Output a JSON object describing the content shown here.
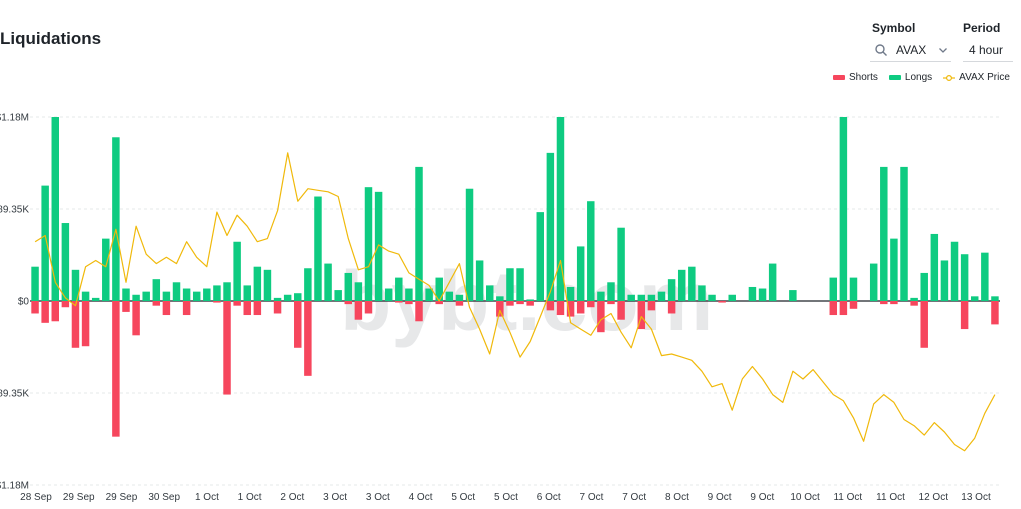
{
  "chart_title": "Liquidations",
  "controls": {
    "symbol_label": "Symbol",
    "symbol_value": "AVAX",
    "period_label": "Period",
    "period_value": "4 hour"
  },
  "icons": {
    "search": "search-icon",
    "dropdown": "chevron-down-icon"
  },
  "watermark": "bybt.com",
  "colors": {
    "shorts": "#f6465d",
    "longs": "#0ecb81",
    "price": "#f0b90b"
  },
  "chart_data": {
    "type": "bar",
    "title": "Liquidations",
    "legend": [
      "Shorts",
      "Longs",
      "AVAX Price"
    ],
    "legend_position": "top-right",
    "grid": true,
    "ylim": [
      -1.18,
      1.18
    ],
    "y_unit": "M USD",
    "y_tick_labels": [
      "$1.18M",
      "$589.35K",
      "$0",
      "$589.35K",
      "$1.18M"
    ],
    "x_tick_labels": [
      "28 Sep",
      "29 Sep",
      "29 Sep",
      "30 Sep",
      "1 Oct",
      "1 Oct",
      "2 Oct",
      "3 Oct",
      "3 Oct",
      "4 Oct",
      "5 Oct",
      "5 Oct",
      "6 Oct",
      "7 Oct",
      "7 Oct",
      "8 Oct",
      "9 Oct",
      "9 Oct",
      "10 Oct",
      "11 Oct",
      "11 Oct",
      "12 Oct",
      "13 Oct"
    ],
    "series": [
      {
        "name": "Longs",
        "values": [
          0.22,
          0.74,
          1.18,
          0.5,
          0.2,
          0.06,
          0.02,
          0.4,
          1.05,
          0.08,
          0.04,
          0.06,
          0.14,
          0.06,
          0.12,
          0.08,
          0.06,
          0.08,
          0.1,
          0.12,
          0.38,
          0.1,
          0.22,
          0.2,
          0.02,
          0.04,
          0.05,
          0.21,
          0.67,
          0.24,
          0.07,
          0.18,
          0.12,
          0.73,
          0.7,
          0.08,
          0.15,
          0.08,
          0.86,
          0.08,
          0.15,
          0.06,
          0.04,
          0.72,
          0.26,
          0.1,
          0.03,
          0.21,
          0.21,
          0.01,
          0.57,
          0.95,
          1.18,
          0.09,
          0.35,
          0.64,
          0.06,
          0.12,
          0.47,
          0.04,
          0.04,
          0.04,
          0.06,
          0.14,
          0.2,
          0.22,
          0.1,
          0.04,
          0.0,
          0.04,
          0.0,
          0.09,
          0.08,
          0.24,
          0.0,
          0.07,
          0.0,
          0.0,
          0.0,
          0.15,
          1.18,
          0.15,
          0.0,
          0.24,
          0.86,
          0.4,
          0.86,
          0.02,
          0.18,
          0.43,
          0.26,
          0.38,
          0.3,
          0.03,
          0.31,
          0.03
        ]
      },
      {
        "name": "Shorts",
        "values": [
          -0.08,
          -0.14,
          -0.13,
          -0.04,
          -0.3,
          -0.29,
          -0.0,
          -0.0,
          -0.87,
          -0.07,
          -0.22,
          -0.0,
          -0.03,
          -0.09,
          -0.0,
          -0.09,
          -0.0,
          -0.0,
          -0.01,
          -0.6,
          -0.03,
          -0.09,
          -0.09,
          -0.0,
          -0.08,
          -0.0,
          -0.3,
          -0.48,
          -0.0,
          -0.0,
          -0.0,
          -0.02,
          -0.12,
          -0.08,
          -0.0,
          -0.0,
          -0.01,
          -0.02,
          -0.13,
          -0.0,
          -0.02,
          -0.0,
          -0.03,
          -0.0,
          -0.0,
          -0.0,
          -0.1,
          -0.03,
          -0.02,
          -0.03,
          -0.0,
          -0.06,
          -0.09,
          -0.1,
          -0.08,
          -0.04,
          -0.2,
          -0.02,
          -0.12,
          -0.0,
          -0.18,
          -0.06,
          -0.0,
          -0.08,
          -0.0,
          -0.0,
          -0.0,
          -0.0,
          -0.01,
          -0.0,
          -0.0,
          -0.0,
          -0.0,
          -0.0,
          -0.0,
          -0.0,
          -0.0,
          -0.0,
          -0.0,
          -0.09,
          -0.09,
          -0.05,
          -0.0,
          -0.0,
          -0.02,
          -0.02,
          -0.0,
          -0.03,
          -0.3,
          -0.0,
          -0.0,
          -0.0,
          -0.18,
          -0.0,
          -0.0,
          -0.15
        ]
      },
      {
        "name": "AVAX Price",
        "values": [
          0.38,
          0.42,
          0.12,
          0.02,
          -0.03,
          0.22,
          0.26,
          0.22,
          0.46,
          0.12,
          0.48,
          0.3,
          0.24,
          0.28,
          0.24,
          0.38,
          0.28,
          0.22,
          0.57,
          0.42,
          0.55,
          0.48,
          0.38,
          0.4,
          0.58,
          0.95,
          0.64,
          0.72,
          0.71,
          0.7,
          0.67,
          0.4,
          0.2,
          0.22,
          0.36,
          0.32,
          0.3,
          0.18,
          0.14,
          0.1,
          0.0,
          0.12,
          0.24,
          -0.04,
          -0.18,
          -0.34,
          -0.06,
          -0.2,
          -0.36,
          -0.26,
          -0.1,
          0.06,
          0.26,
          -0.14,
          -0.18,
          -0.22,
          -0.12,
          -0.08,
          -0.2,
          -0.3,
          -0.1,
          -0.18,
          -0.35,
          -0.34,
          -0.36,
          -0.38,
          -0.45,
          -0.55,
          -0.53,
          -0.7,
          -0.5,
          -0.42,
          -0.5,
          -0.6,
          -0.65,
          -0.45,
          -0.5,
          -0.44,
          -0.52,
          -0.6,
          -0.64,
          -0.75,
          -0.9,
          -0.66,
          -0.6,
          -0.65,
          -0.76,
          -0.8,
          -0.86,
          -0.78,
          -0.84,
          -0.92,
          -0.96,
          -0.88,
          -0.72,
          -0.6
        ]
      }
    ]
  }
}
